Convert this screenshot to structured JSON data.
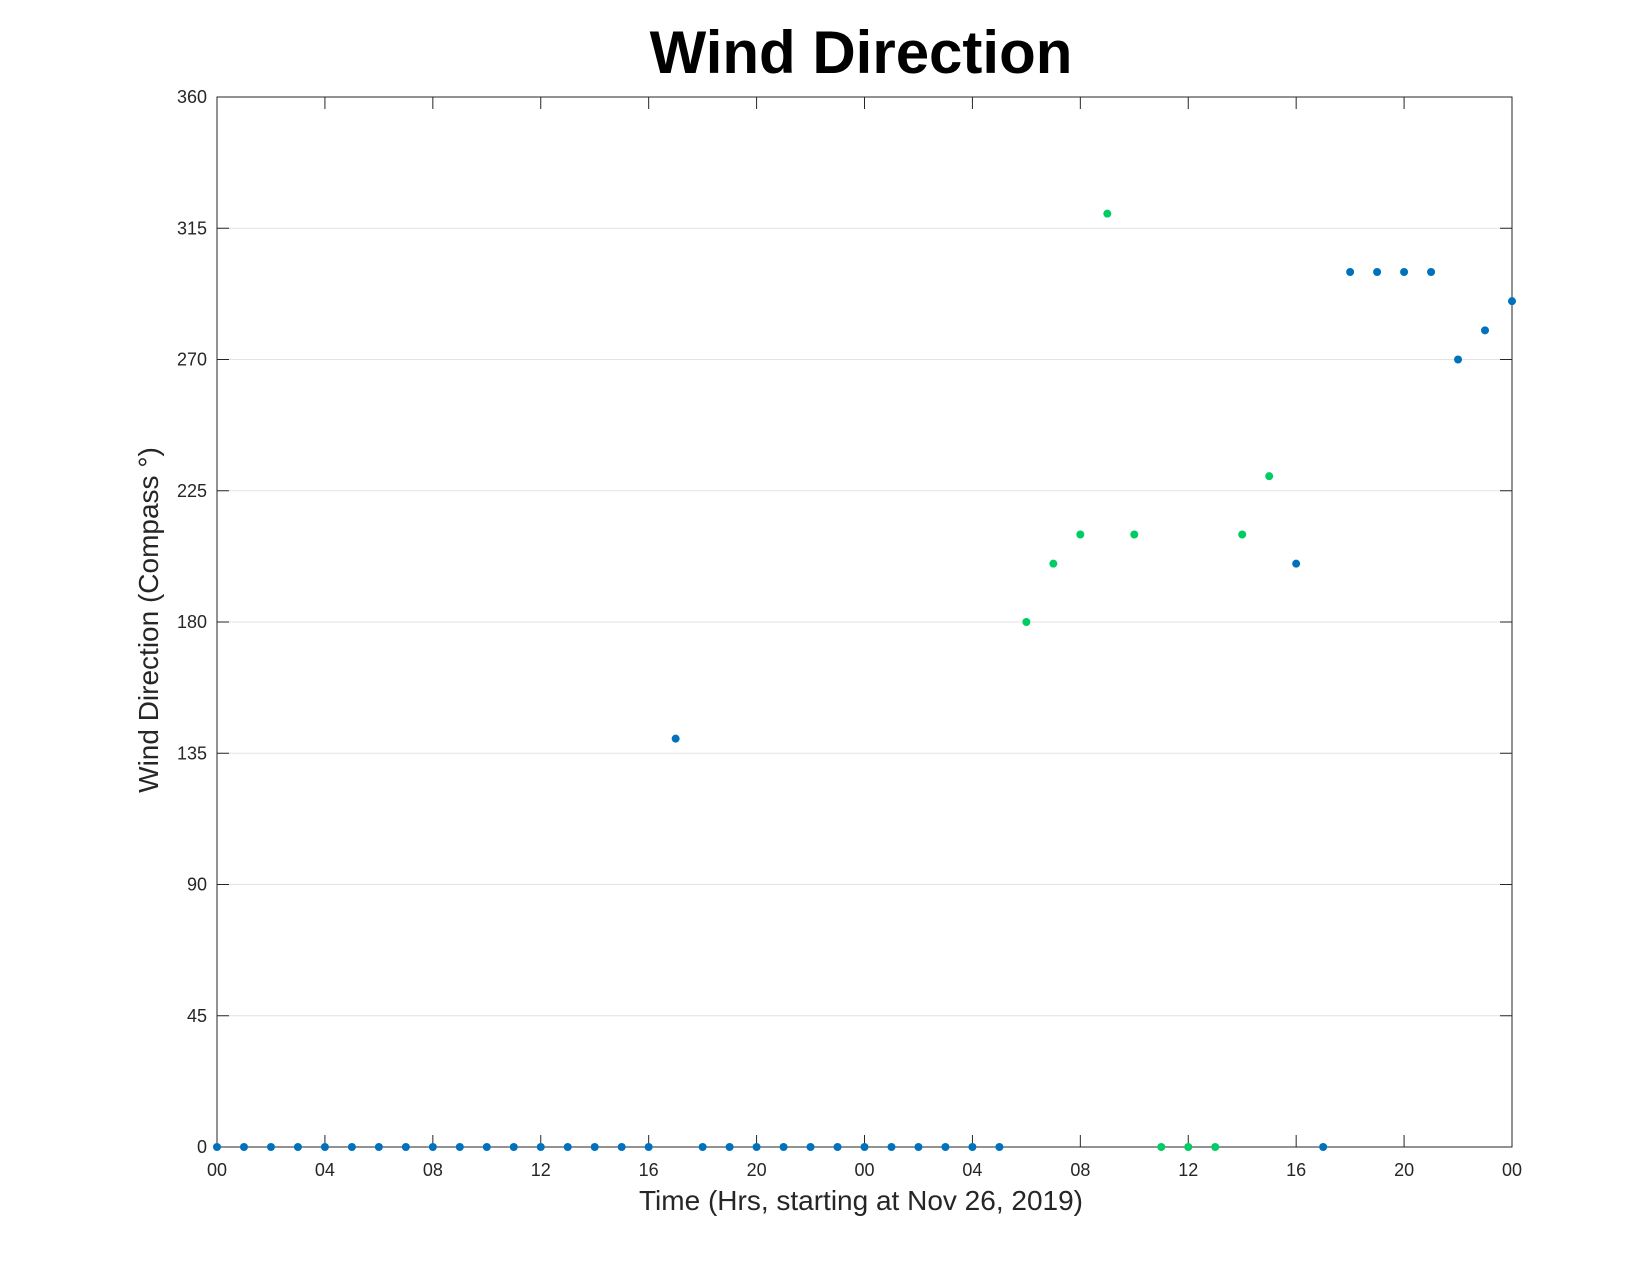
{
  "chart_data": {
    "type": "scatter",
    "title": "Wind Direction",
    "xlabel": "Time (Hrs, starting at Nov 26, 2019)",
    "ylabel": "Wind Direction (Compass °)",
    "xlim": [
      "Nov 26 00:00",
      "Nov 28 00:00"
    ],
    "ylim": [
      0,
      360
    ],
    "yticks": [
      0,
      45,
      90,
      135,
      180,
      225,
      270,
      315,
      360
    ],
    "xticks": [
      {
        "hour": 0,
        "label": "00"
      },
      {
        "hour": 4,
        "label": "04"
      },
      {
        "hour": 8,
        "label": "08"
      },
      {
        "hour": 12,
        "label": "12"
      },
      {
        "hour": 16,
        "label": "16"
      },
      {
        "hour": 20,
        "label": "20"
      },
      {
        "hour": 24,
        "label": "00"
      },
      {
        "hour": 28,
        "label": "04"
      },
      {
        "hour": 32,
        "label": "08"
      },
      {
        "hour": 36,
        "label": "12"
      },
      {
        "hour": 40,
        "label": "16"
      },
      {
        "hour": 44,
        "label": "20"
      },
      {
        "hour": 48,
        "label": "00"
      }
    ],
    "grid": "horizontal",
    "colors": {
      "series_1": "#0072BD",
      "series_2": "#00CC66"
    },
    "series": [
      {
        "color": "#0072BD",
        "points": [
          {
            "x": "Nov 26 00:00",
            "y": 0
          },
          {
            "x": "Nov 26 01:00",
            "y": 0
          },
          {
            "x": "Nov 26 02:00",
            "y": 0
          },
          {
            "x": "Nov 26 03:00",
            "y": 0
          },
          {
            "x": "Nov 26 04:00",
            "y": 0
          },
          {
            "x": "Nov 26 05:00",
            "y": 0
          },
          {
            "x": "Nov 26 06:00",
            "y": 0
          },
          {
            "x": "Nov 26 07:00",
            "y": 0
          },
          {
            "x": "Nov 26 08:00",
            "y": 0
          },
          {
            "x": "Nov 26 09:00",
            "y": 0
          },
          {
            "x": "Nov 26 10:00",
            "y": 0
          },
          {
            "x": "Nov 26 11:00",
            "y": 0
          },
          {
            "x": "Nov 26 12:00",
            "y": 0
          },
          {
            "x": "Nov 26 13:00",
            "y": 0
          },
          {
            "x": "Nov 26 14:00",
            "y": 0
          },
          {
            "x": "Nov 26 15:00",
            "y": 0
          },
          {
            "x": "Nov 26 16:00",
            "y": 0
          },
          {
            "x": "Nov 26 17:00",
            "y": 140
          },
          {
            "x": "Nov 26 18:00",
            "y": 0
          },
          {
            "x": "Nov 26 19:00",
            "y": 0
          },
          {
            "x": "Nov 26 20:00",
            "y": 0
          },
          {
            "x": "Nov 26 21:00",
            "y": 0
          },
          {
            "x": "Nov 26 22:00",
            "y": 0
          },
          {
            "x": "Nov 26 23:00",
            "y": 0
          },
          {
            "x": "Nov 27 00:00",
            "y": 0
          },
          {
            "x": "Nov 27 01:00",
            "y": 0
          },
          {
            "x": "Nov 27 02:00",
            "y": 0
          },
          {
            "x": "Nov 27 03:00",
            "y": 0
          },
          {
            "x": "Nov 27 04:00",
            "y": 0
          },
          {
            "x": "Nov 27 05:00",
            "y": 0
          },
          {
            "x": "Nov 27 16:00",
            "y": 200
          },
          {
            "x": "Nov 27 17:00",
            "y": 0
          },
          {
            "x": "Nov 27 18:00",
            "y": 300
          },
          {
            "x": "Nov 27 19:00",
            "y": 300
          },
          {
            "x": "Nov 27 20:00",
            "y": 300
          },
          {
            "x": "Nov 27 21:00",
            "y": 300
          },
          {
            "x": "Nov 27 22:00",
            "y": 270
          },
          {
            "x": "Nov 27 23:00",
            "y": 280
          },
          {
            "x": "Nov 28 00:00",
            "y": 290
          }
        ]
      },
      {
        "color": "#00CC66",
        "points": [
          {
            "x": "Nov 27 06:00",
            "y": 180
          },
          {
            "x": "Nov 27 07:00",
            "y": 200
          },
          {
            "x": "Nov 27 08:00",
            "y": 210
          },
          {
            "x": "Nov 27 09:00",
            "y": 320
          },
          {
            "x": "Nov 27 10:00",
            "y": 210
          },
          {
            "x": "Nov 27 11:00",
            "y": 0
          },
          {
            "x": "Nov 27 12:00",
            "y": 0
          },
          {
            "x": "Nov 27 13:00",
            "y": 0
          },
          {
            "x": "Nov 27 14:00",
            "y": 210
          },
          {
            "x": "Nov 27 15:00",
            "y": 230
          }
        ]
      }
    ]
  }
}
